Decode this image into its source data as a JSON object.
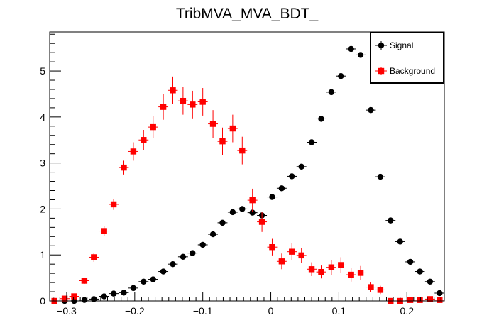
{
  "chart_data": {
    "type": "scatter",
    "title": "TribMVA_MVA_BDT_",
    "xlabel": "",
    "ylabel": "",
    "xlim": [
      -0.325,
      0.255
    ],
    "ylim": [
      0,
      5.85
    ],
    "xticks": [
      -0.3,
      -0.2,
      -0.1,
      0,
      0.1,
      0.2
    ],
    "xtick_labels": [
      "−0.3",
      "−0.2",
      "−0.1",
      "0",
      "0.1",
      "0.2"
    ],
    "yticks": [
      0,
      1,
      2,
      3,
      4,
      5
    ],
    "ytick_labels": [
      "0",
      "1",
      "2",
      "3",
      "4",
      "5"
    ],
    "legend": {
      "position": "top-right",
      "entries": [
        "Signal",
        "Background"
      ]
    },
    "bin_width": 0.0145,
    "series": [
      {
        "name": "Signal",
        "color": "#000000",
        "marker": "circle",
        "x": [
          -0.318,
          -0.303,
          -0.289,
          -0.274,
          -0.26,
          -0.245,
          -0.231,
          -0.216,
          -0.202,
          -0.187,
          -0.173,
          -0.158,
          -0.144,
          -0.129,
          -0.115,
          -0.1,
          -0.085,
          -0.071,
          -0.056,
          -0.042,
          -0.027,
          -0.013,
          0.002,
          0.016,
          0.031,
          0.045,
          0.06,
          0.074,
          0.089,
          0.103,
          0.118,
          0.132,
          0.147,
          0.161,
          0.176,
          0.19,
          0.205,
          0.219,
          0.234,
          0.248
        ],
        "y": [
          0.0,
          0.0,
          0.0,
          0.02,
          0.04,
          0.1,
          0.16,
          0.18,
          0.28,
          0.42,
          0.47,
          0.64,
          0.8,
          0.96,
          1.04,
          1.22,
          1.45,
          1.7,
          1.93,
          2.0,
          1.92,
          1.86,
          2.26,
          2.45,
          2.71,
          2.92,
          3.45,
          3.96,
          4.54,
          4.89,
          5.48,
          5.35,
          4.15,
          2.7,
          1.75,
          1.29,
          0.85,
          0.64,
          0.42,
          0.17
        ],
        "yerr": [
          0.0,
          0.0,
          0.0,
          0.01,
          0.02,
          0.03,
          0.03,
          0.03,
          0.03,
          0.03,
          0.03,
          0.03,
          0.03,
          0.03,
          0.03,
          0.03,
          0.04,
          0.04,
          0.04,
          0.04,
          0.04,
          0.04,
          0.04,
          0.04,
          0.05,
          0.05,
          0.05,
          0.05,
          0.05,
          0.05,
          0.05,
          0.05,
          0.05,
          0.04,
          0.04,
          0.03,
          0.03,
          0.03,
          0.02,
          0.02
        ]
      },
      {
        "name": "Background",
        "color": "#ff0000",
        "marker": "square",
        "x": [
          -0.318,
          -0.303,
          -0.289,
          -0.274,
          -0.26,
          -0.245,
          -0.231,
          -0.216,
          -0.202,
          -0.187,
          -0.173,
          -0.158,
          -0.144,
          -0.129,
          -0.115,
          -0.1,
          -0.085,
          -0.071,
          -0.056,
          -0.042,
          -0.027,
          -0.013,
          0.002,
          0.016,
          0.031,
          0.045,
          0.06,
          0.074,
          0.089,
          0.103,
          0.118,
          0.132,
          0.147,
          0.161,
          0.176,
          0.19,
          0.205,
          0.219,
          0.234,
          0.248
        ],
        "y": [
          0.0,
          0.05,
          0.1,
          0.44,
          0.95,
          1.52,
          2.1,
          2.9,
          3.25,
          3.5,
          3.78,
          4.22,
          4.58,
          4.35,
          4.27,
          4.33,
          3.85,
          3.47,
          3.75,
          3.27,
          2.19,
          1.72,
          1.17,
          0.86,
          1.07,
          0.99,
          0.69,
          0.63,
          0.73,
          0.78,
          0.57,
          0.61,
          0.3,
          0.24,
          0.0,
          0.0,
          0.02,
          0.02,
          0.04,
          0.02
        ],
        "yerr": [
          0.0,
          0.03,
          0.06,
          0.07,
          0.1,
          0.1,
          0.12,
          0.15,
          0.2,
          0.22,
          0.24,
          0.28,
          0.3,
          0.3,
          0.3,
          0.3,
          0.3,
          0.3,
          0.3,
          0.3,
          0.25,
          0.22,
          0.18,
          0.17,
          0.18,
          0.16,
          0.15,
          0.14,
          0.16,
          0.17,
          0.15,
          0.15,
          0.1,
          0.09,
          0.0,
          0.0,
          0.02,
          0.02,
          0.03,
          0.02
        ]
      }
    ]
  }
}
